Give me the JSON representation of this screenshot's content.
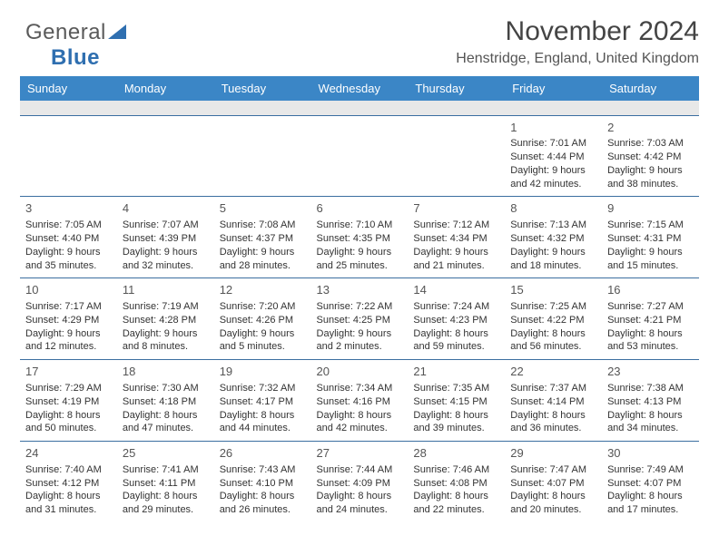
{
  "logo": {
    "text_a": "General",
    "text_b": "Blue"
  },
  "header": {
    "month": "November 2024",
    "location": "Henstridge, England, United Kingdom"
  },
  "colors": {
    "header_bg": "#3b86c6",
    "header_text": "#ffffff",
    "row_divider": "#3b6ea0",
    "spacer_bg": "#e8e8e8",
    "text": "#333333",
    "logo_dark": "#5a5a5a",
    "logo_blue": "#2f6fb0"
  },
  "day_headers": [
    "Sunday",
    "Monday",
    "Tuesday",
    "Wednesday",
    "Thursday",
    "Friday",
    "Saturday"
  ],
  "weeks": [
    [
      null,
      null,
      null,
      null,
      null,
      {
        "n": "1",
        "sr": "Sunrise: 7:01 AM",
        "ss": "Sunset: 4:44 PM",
        "d1": "Daylight: 9 hours",
        "d2": "and 42 minutes."
      },
      {
        "n": "2",
        "sr": "Sunrise: 7:03 AM",
        "ss": "Sunset: 4:42 PM",
        "d1": "Daylight: 9 hours",
        "d2": "and 38 minutes."
      }
    ],
    [
      {
        "n": "3",
        "sr": "Sunrise: 7:05 AM",
        "ss": "Sunset: 4:40 PM",
        "d1": "Daylight: 9 hours",
        "d2": "and 35 minutes."
      },
      {
        "n": "4",
        "sr": "Sunrise: 7:07 AM",
        "ss": "Sunset: 4:39 PM",
        "d1": "Daylight: 9 hours",
        "d2": "and 32 minutes."
      },
      {
        "n": "5",
        "sr": "Sunrise: 7:08 AM",
        "ss": "Sunset: 4:37 PM",
        "d1": "Daylight: 9 hours",
        "d2": "and 28 minutes."
      },
      {
        "n": "6",
        "sr": "Sunrise: 7:10 AM",
        "ss": "Sunset: 4:35 PM",
        "d1": "Daylight: 9 hours",
        "d2": "and 25 minutes."
      },
      {
        "n": "7",
        "sr": "Sunrise: 7:12 AM",
        "ss": "Sunset: 4:34 PM",
        "d1": "Daylight: 9 hours",
        "d2": "and 21 minutes."
      },
      {
        "n": "8",
        "sr": "Sunrise: 7:13 AM",
        "ss": "Sunset: 4:32 PM",
        "d1": "Daylight: 9 hours",
        "d2": "and 18 minutes."
      },
      {
        "n": "9",
        "sr": "Sunrise: 7:15 AM",
        "ss": "Sunset: 4:31 PM",
        "d1": "Daylight: 9 hours",
        "d2": "and 15 minutes."
      }
    ],
    [
      {
        "n": "10",
        "sr": "Sunrise: 7:17 AM",
        "ss": "Sunset: 4:29 PM",
        "d1": "Daylight: 9 hours",
        "d2": "and 12 minutes."
      },
      {
        "n": "11",
        "sr": "Sunrise: 7:19 AM",
        "ss": "Sunset: 4:28 PM",
        "d1": "Daylight: 9 hours",
        "d2": "and 8 minutes."
      },
      {
        "n": "12",
        "sr": "Sunrise: 7:20 AM",
        "ss": "Sunset: 4:26 PM",
        "d1": "Daylight: 9 hours",
        "d2": "and 5 minutes."
      },
      {
        "n": "13",
        "sr": "Sunrise: 7:22 AM",
        "ss": "Sunset: 4:25 PM",
        "d1": "Daylight: 9 hours",
        "d2": "and 2 minutes."
      },
      {
        "n": "14",
        "sr": "Sunrise: 7:24 AM",
        "ss": "Sunset: 4:23 PM",
        "d1": "Daylight: 8 hours",
        "d2": "and 59 minutes."
      },
      {
        "n": "15",
        "sr": "Sunrise: 7:25 AM",
        "ss": "Sunset: 4:22 PM",
        "d1": "Daylight: 8 hours",
        "d2": "and 56 minutes."
      },
      {
        "n": "16",
        "sr": "Sunrise: 7:27 AM",
        "ss": "Sunset: 4:21 PM",
        "d1": "Daylight: 8 hours",
        "d2": "and 53 minutes."
      }
    ],
    [
      {
        "n": "17",
        "sr": "Sunrise: 7:29 AM",
        "ss": "Sunset: 4:19 PM",
        "d1": "Daylight: 8 hours",
        "d2": "and 50 minutes."
      },
      {
        "n": "18",
        "sr": "Sunrise: 7:30 AM",
        "ss": "Sunset: 4:18 PM",
        "d1": "Daylight: 8 hours",
        "d2": "and 47 minutes."
      },
      {
        "n": "19",
        "sr": "Sunrise: 7:32 AM",
        "ss": "Sunset: 4:17 PM",
        "d1": "Daylight: 8 hours",
        "d2": "and 44 minutes."
      },
      {
        "n": "20",
        "sr": "Sunrise: 7:34 AM",
        "ss": "Sunset: 4:16 PM",
        "d1": "Daylight: 8 hours",
        "d2": "and 42 minutes."
      },
      {
        "n": "21",
        "sr": "Sunrise: 7:35 AM",
        "ss": "Sunset: 4:15 PM",
        "d1": "Daylight: 8 hours",
        "d2": "and 39 minutes."
      },
      {
        "n": "22",
        "sr": "Sunrise: 7:37 AM",
        "ss": "Sunset: 4:14 PM",
        "d1": "Daylight: 8 hours",
        "d2": "and 36 minutes."
      },
      {
        "n": "23",
        "sr": "Sunrise: 7:38 AM",
        "ss": "Sunset: 4:13 PM",
        "d1": "Daylight: 8 hours",
        "d2": "and 34 minutes."
      }
    ],
    [
      {
        "n": "24",
        "sr": "Sunrise: 7:40 AM",
        "ss": "Sunset: 4:12 PM",
        "d1": "Daylight: 8 hours",
        "d2": "and 31 minutes."
      },
      {
        "n": "25",
        "sr": "Sunrise: 7:41 AM",
        "ss": "Sunset: 4:11 PM",
        "d1": "Daylight: 8 hours",
        "d2": "and 29 minutes."
      },
      {
        "n": "26",
        "sr": "Sunrise: 7:43 AM",
        "ss": "Sunset: 4:10 PM",
        "d1": "Daylight: 8 hours",
        "d2": "and 26 minutes."
      },
      {
        "n": "27",
        "sr": "Sunrise: 7:44 AM",
        "ss": "Sunset: 4:09 PM",
        "d1": "Daylight: 8 hours",
        "d2": "and 24 minutes."
      },
      {
        "n": "28",
        "sr": "Sunrise: 7:46 AM",
        "ss": "Sunset: 4:08 PM",
        "d1": "Daylight: 8 hours",
        "d2": "and 22 minutes."
      },
      {
        "n": "29",
        "sr": "Sunrise: 7:47 AM",
        "ss": "Sunset: 4:07 PM",
        "d1": "Daylight: 8 hours",
        "d2": "and 20 minutes."
      },
      {
        "n": "30",
        "sr": "Sunrise: 7:49 AM",
        "ss": "Sunset: 4:07 PM",
        "d1": "Daylight: 8 hours",
        "d2": "and 17 minutes."
      }
    ]
  ]
}
